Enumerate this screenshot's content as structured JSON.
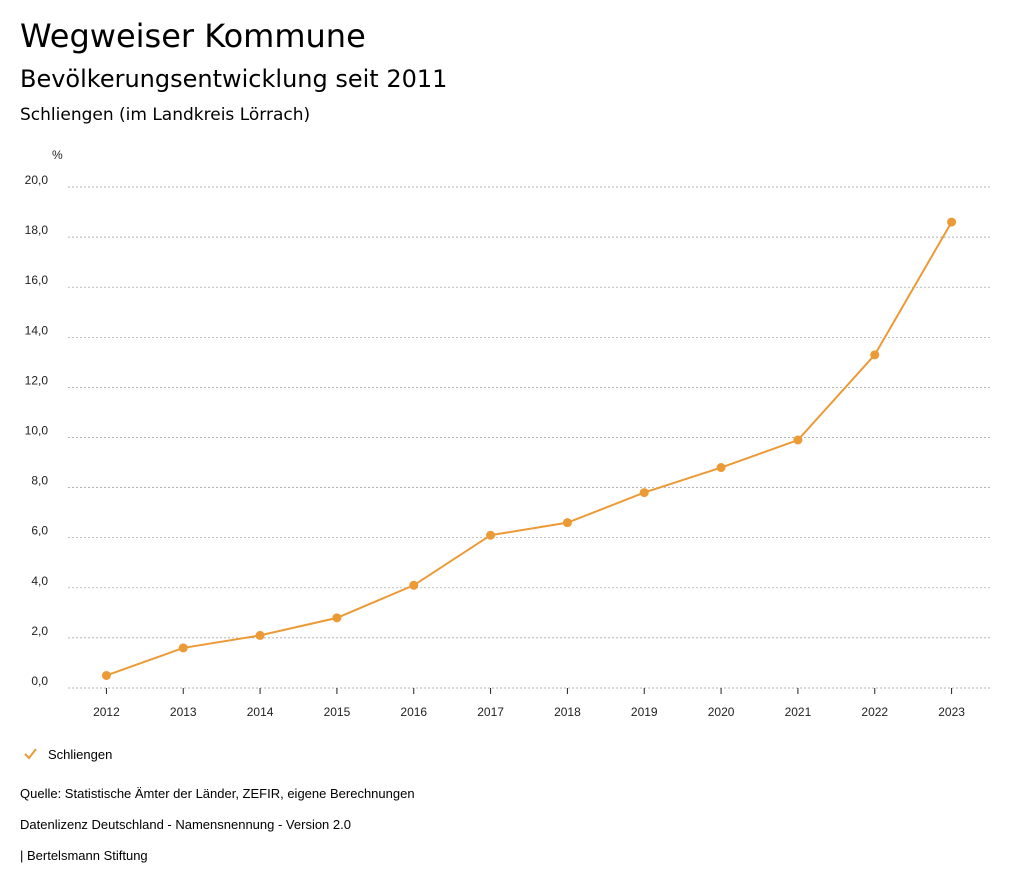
{
  "header": {
    "title": "Wegweiser Kommune",
    "subtitle": "Bevölkerungsentwicklung seit 2011",
    "region": "Schliengen (im Landkreis Lörrach)"
  },
  "chart_data": {
    "type": "line",
    "title": "Bevölkerungsentwicklung seit 2011",
    "ylabel": "%",
    "xlabel": "",
    "ylim": [
      0,
      20
    ],
    "yticks": [
      "0,0",
      "2,0",
      "4,0",
      "6,0",
      "8,0",
      "10,0",
      "12,0",
      "14,0",
      "16,0",
      "18,0",
      "20,0"
    ],
    "grid": true,
    "categories": [
      "2012",
      "2013",
      "2014",
      "2015",
      "2016",
      "2017",
      "2018",
      "2019",
      "2020",
      "2021",
      "2022",
      "2023"
    ],
    "series": [
      {
        "name": "Schliengen",
        "values": [
          0.5,
          1.6,
          2.1,
          2.8,
          4.1,
          6.1,
          6.6,
          7.8,
          8.8,
          9.9,
          13.3,
          18.6
        ]
      }
    ],
    "legend_position": "bottom-left"
  },
  "colors": {
    "series": "#ec9a35",
    "grid": "#9a9a9a",
    "axis": "#222222"
  },
  "legend": {
    "label": "Schliengen",
    "icon": "check-icon"
  },
  "footer": {
    "source": "Quelle: Statistische Ämter der Länder, ZEFIR, eigene Berechnungen",
    "license": "Datenlizenz Deutschland - Namensnennung - Version 2.0",
    "publisher": "| Bertelsmann Stiftung"
  }
}
